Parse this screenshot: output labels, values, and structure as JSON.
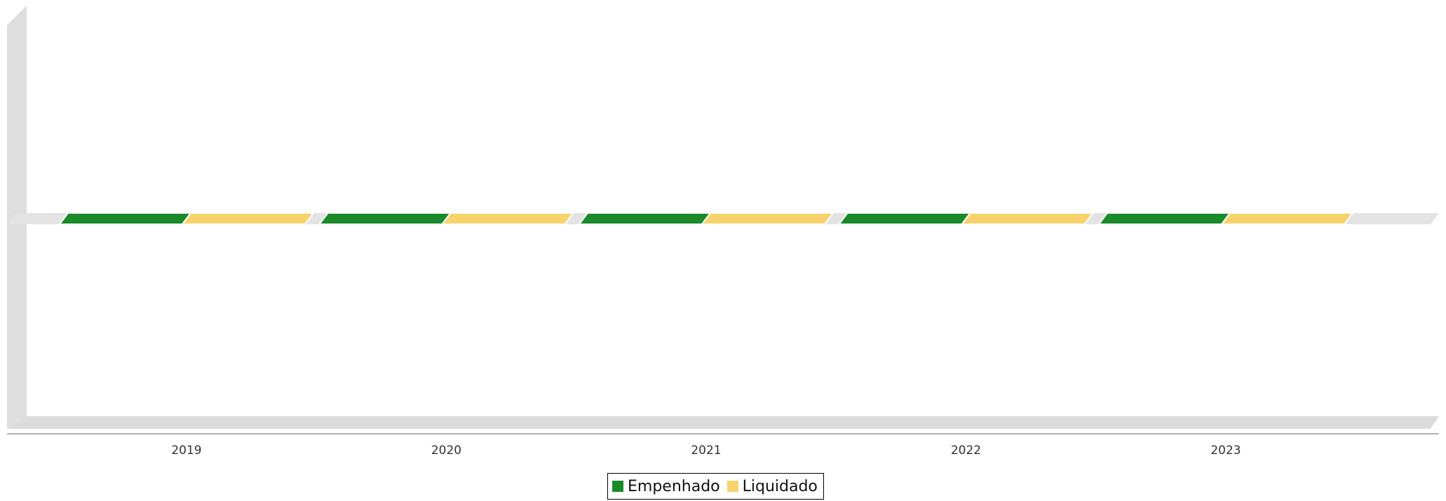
{
  "chart_data": {
    "type": "bar",
    "categories": [
      "2019",
      "2020",
      "2021",
      "2022",
      "2023"
    ],
    "series": [
      {
        "name": "Empenhado",
        "values": [
          0,
          0,
          0,
          0,
          0
        ],
        "color": "#1a8a2a"
      },
      {
        "name": "Liquidado",
        "values": [
          0,
          0,
          0,
          0,
          0
        ],
        "color": "#f7d36e"
      }
    ],
    "title": "",
    "xlabel": "",
    "ylabel": "",
    "grid": false,
    "legend_position": "bottom-center",
    "style": "3d"
  }
}
